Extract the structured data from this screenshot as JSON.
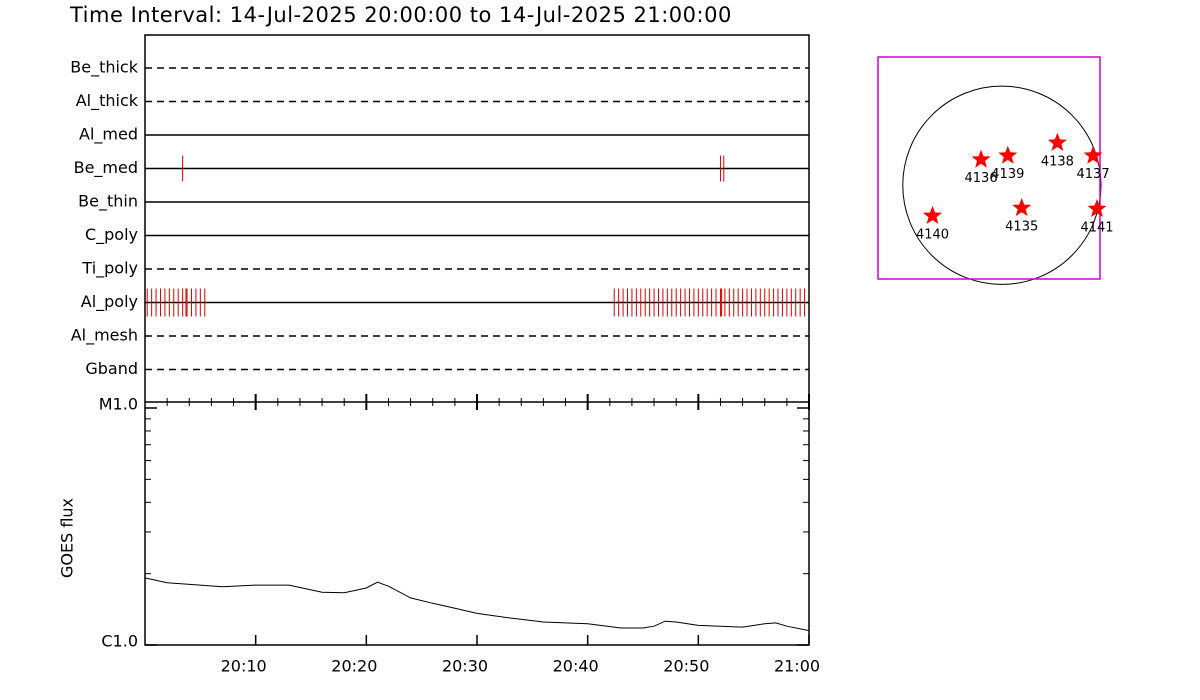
{
  "chart_data": [
    {
      "type": "timeline",
      "title": "Time Interval: 14-Jul-2025 20:00:00 to 14-Jul-2025 21:00:00",
      "categories": [
        "Be_thick",
        "Al_thick",
        "Al_med",
        "Be_med",
        "Be_thin",
        "C_poly",
        "Ti_poly",
        "Al_poly",
        "Al_mesh",
        "Gband"
      ],
      "styles": [
        "dashed",
        "dashed",
        "solid",
        "solid",
        "solid",
        "solid",
        "dashed",
        "solid",
        "dashed",
        "dashed"
      ],
      "xlim": [
        0,
        60
      ],
      "color": "#e00000",
      "events": [
        [],
        [],
        [],
        [
          3.4,
          52.0,
          52.3
        ],
        [],
        [],
        [],
        [
          0.2,
          0.6,
          1.0,
          1.4,
          1.8,
          2.2,
          2.6,
          3.0,
          3.4,
          3.7,
          3.8,
          4.2,
          4.6,
          5.0,
          5.4,
          42.4,
          42.8,
          43.2,
          43.6,
          44.0,
          44.4,
          44.8,
          45.2,
          45.6,
          46.0,
          46.4,
          46.8,
          47.2,
          47.6,
          48.0,
          48.4,
          48.8,
          49.2,
          49.6,
          50.0,
          50.4,
          50.8,
          51.2,
          51.6,
          52.0,
          52.1,
          52.4,
          52.8,
          53.2,
          53.6,
          54.0,
          54.4,
          54.8,
          55.2,
          55.6,
          56.0,
          56.4,
          56.8,
          57.2,
          57.6,
          58.0,
          58.4,
          58.8,
          59.2,
          59.6
        ],
        [],
        []
      ]
    },
    {
      "type": "line",
      "y_label": "GOES flux",
      "log_y": true,
      "color": "#000000",
      "x": [
        0,
        2,
        5,
        7,
        10,
        13,
        16,
        18,
        20,
        21,
        22,
        24,
        26,
        28,
        30,
        33,
        36,
        38,
        40,
        43,
        45,
        46,
        47,
        48,
        50,
        52,
        54,
        56,
        57,
        58,
        60
      ],
      "values": [
        1.92e-06,
        1.83e-06,
        1.79e-06,
        1.76e-06,
        1.79e-06,
        1.79e-06,
        1.67e-06,
        1.66e-06,
        1.74e-06,
        1.84e-06,
        1.77e-06,
        1.58e-06,
        1.5e-06,
        1.43e-06,
        1.36e-06,
        1.3e-06,
        1.25e-06,
        1.24e-06,
        1.23e-06,
        1.18e-06,
        1.18e-06,
        1.2e-06,
        1.26e-06,
        1.25e-06,
        1.21e-06,
        1.2e-06,
        1.19e-06,
        1.23e-06,
        1.24e-06,
        1.2e-06,
        1.15e-06
      ],
      "xlim": [
        0,
        60
      ],
      "xticks": [
        {
          "value": 10,
          "label": "20:10"
        },
        {
          "value": 20,
          "label": "20:20"
        },
        {
          "value": 30,
          "label": "20:30"
        },
        {
          "value": 40,
          "label": "20:40"
        },
        {
          "value": 50,
          "label": "20:50"
        },
        {
          "value": 60,
          "label": "21:00"
        }
      ],
      "ylim": [
        1e-06,
        1e-05
      ],
      "yticks": [
        {
          "value": 1e-06,
          "label": "C1.0"
        },
        {
          "value": 1e-05,
          "label": "M1.0"
        }
      ]
    },
    {
      "type": "map",
      "box_color": "#d000d0",
      "color": "#ff0000",
      "xlim": [
        -1.25,
        0.99
      ],
      "ylim": [
        -0.95,
        1.3
      ],
      "labels": [
        "4136",
        "4139",
        "4138",
        "4137",
        "4140",
        "4135",
        "4141"
      ],
      "x": [
        -0.21,
        0.06,
        0.56,
        0.92,
        -0.7,
        0.2,
        0.96
      ],
      "values": [
        0.26,
        0.3,
        0.43,
        0.3,
        -0.31,
        -0.23,
        -0.24
      ]
    }
  ]
}
